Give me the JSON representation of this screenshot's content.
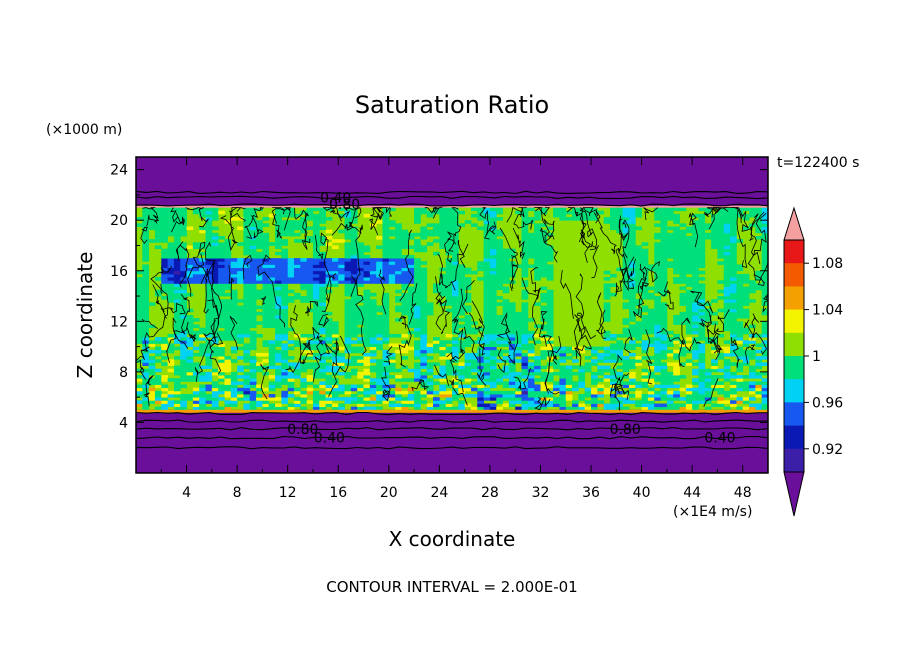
{
  "chart_data": {
    "type": "heatmap",
    "title": "Saturation Ratio",
    "xlabel": "X coordinate",
    "ylabel": "Z coordinate",
    "y_unit": "(×1000 m)",
    "x_unit": "(×1E4 m/s)",
    "time_label": "t=122400 s",
    "footer": "CONTOUR INTERVAL = 2.000E-01",
    "xlim": [
      0,
      50
    ],
    "ylim": [
      0,
      25
    ],
    "x_ticks": [
      "4",
      "8",
      "12",
      "16",
      "20",
      "24",
      "28",
      "32",
      "36",
      "40",
      "44",
      "48"
    ],
    "y_ticks": [
      "4",
      "8",
      "12",
      "16",
      "20",
      "24"
    ],
    "colorbar": {
      "labels": [
        "1.08",
        "1.04",
        "1",
        "0.96",
        "0.92"
      ],
      "levels": [
        0.9,
        0.92,
        0.94,
        0.96,
        0.98,
        1.0,
        1.02,
        1.04,
        1.06,
        1.08,
        1.1
      ],
      "colors": [
        "#6a0f9a",
        "#3b1fa8",
        "#0a18b4",
        "#1658f0",
        "#00d2f4",
        "#00e07a",
        "#8fe000",
        "#f4f400",
        "#f4a000",
        "#f45a00",
        "#e81818",
        "#f4a0a0"
      ],
      "extend": "both"
    },
    "contour_labels": [
      {
        "text": "0.40",
        "x": 15.8,
        "y": 21.8
      },
      {
        "text": "0.80",
        "x": 16.5,
        "y": 21.3
      },
      {
        "text": "0.80",
        "x": 13.2,
        "y": 3.5
      },
      {
        "text": "0.40",
        "x": 15.3,
        "y": 2.8
      },
      {
        "text": "0.80",
        "x": 38.7,
        "y": 3.5
      },
      {
        "text": "0.40",
        "x": 46.2,
        "y": 2.8
      }
    ]
  }
}
